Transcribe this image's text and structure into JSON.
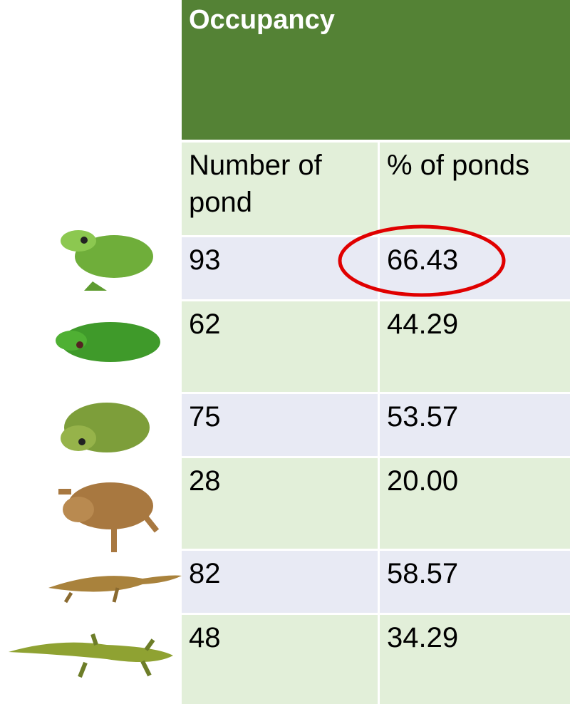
{
  "table": {
    "title": "Occupancy",
    "columns": [
      "Number of pond",
      "% of ponds"
    ],
    "rows": [
      [
        "93",
        "66.43"
      ],
      [
        "62",
        "44.29"
      ],
      [
        "75",
        "53.57"
      ],
      [
        "28",
        "20.00"
      ],
      [
        "82",
        "58.57"
      ],
      [
        "48",
        "34.29"
      ]
    ]
  }
}
